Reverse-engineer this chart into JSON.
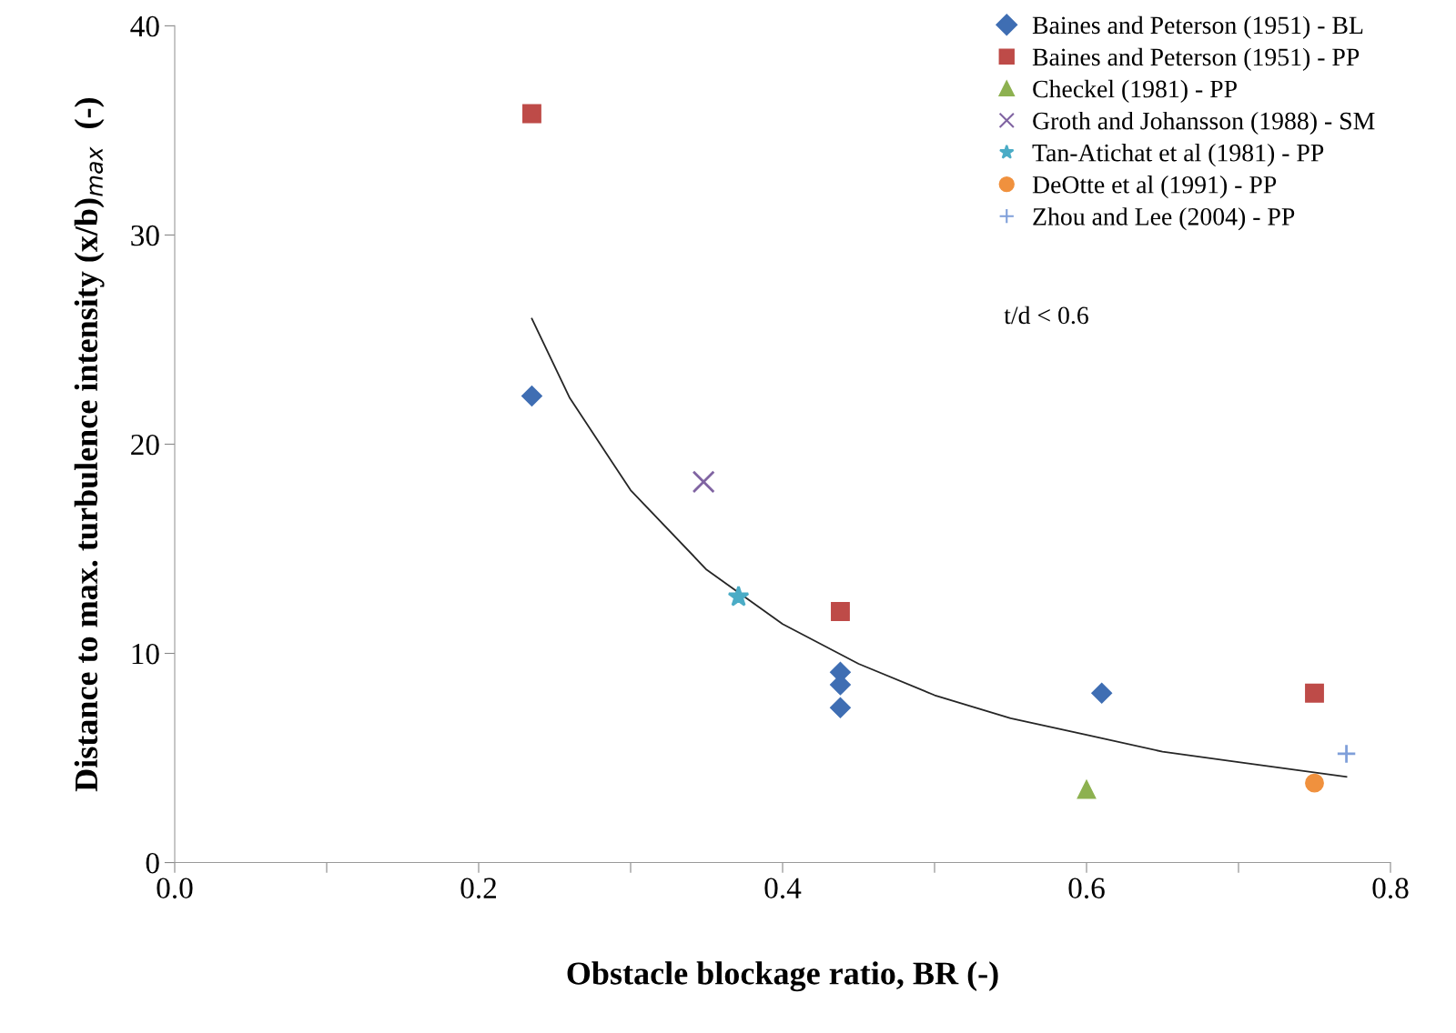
{
  "chart_data": {
    "type": "scatter",
    "xlabel": "Obstacle blockage ratio, BR (-)",
    "ylabel": "Distance to max. turbulence intensity (x/b)$_{max}$  (-)",
    "xlim": [
      0,
      0.8
    ],
    "xticks": [
      {
        "value": 0,
        "label": "0.0"
      },
      {
        "value": 0.1,
        "label": null
      },
      {
        "value": 0.2,
        "label": "0.2"
      },
      {
        "value": 0.3,
        "label": null
      },
      {
        "value": 0.4,
        "label": "0.4"
      },
      {
        "value": 0.5,
        "label": null
      },
      {
        "value": 0.6,
        "label": "0.6"
      },
      {
        "value": 0.7,
        "label": null
      },
      {
        "value": 0.8,
        "label": "0.8"
      }
    ],
    "ylim": [
      0,
      40
    ],
    "yticks": [
      0,
      10,
      20,
      30,
      40
    ],
    "grid": false,
    "legend": "top right",
    "annotations": [
      "t/d < 0.6"
    ],
    "series": [
      {
        "name": "Baines and Peterson (1951) - BL",
        "color": "#3f6eb3",
        "marker": "diamond",
        "x": [
          0.235,
          0.438,
          0.438,
          0.438,
          0.61
        ],
        "values": [
          22.3,
          9.1,
          8.5,
          7.4,
          8.1
        ]
      },
      {
        "name": "Baines and Peterson (1951) - PP",
        "color": "#be4b48",
        "marker": "square",
        "x": [
          0.235,
          0.438,
          0.75
        ],
        "values": [
          35.8,
          12.0,
          8.1
        ]
      },
      {
        "name": "Checkel (1981) - PP",
        "color": "#8db150",
        "marker": "triangle",
        "x": [
          0.6
        ],
        "values": [
          3.5
        ]
      },
      {
        "name": "Groth and Johansson (1988) - SM",
        "color": "#8064a2",
        "marker": "cross",
        "x": [
          0.348
        ],
        "values": [
          18.2
        ]
      },
      {
        "name": "Tan-Atichat et al (1981) - PP",
        "color": "#4bacc6",
        "marker": "star",
        "x": [
          0.371
        ],
        "values": [
          12.7
        ]
      },
      {
        "name": "DeOtte et al (1991) - PP",
        "color": "#f0913e",
        "marker": "circle",
        "x": [
          0.75
        ],
        "values": [
          3.8
        ]
      },
      {
        "name": "Zhou and Lee (2004) - PP",
        "color": "#7f9fd9",
        "marker": "plus",
        "x": [
          0.771
        ],
        "values": [
          5.2
        ]
      },
      {
        "type": "line",
        "color": "#262626",
        "marker": "none",
        "x": [
          0.235,
          0.26,
          0.3,
          0.35,
          0.4,
          0.45,
          0.5,
          0.55,
          0.6,
          0.65,
          0.7,
          0.771
        ],
        "values": [
          26.0,
          22.2,
          17.8,
          14.0,
          11.4,
          9.5,
          8.0,
          6.9,
          6.1,
          5.3,
          4.8,
          4.1
        ]
      }
    ]
  }
}
